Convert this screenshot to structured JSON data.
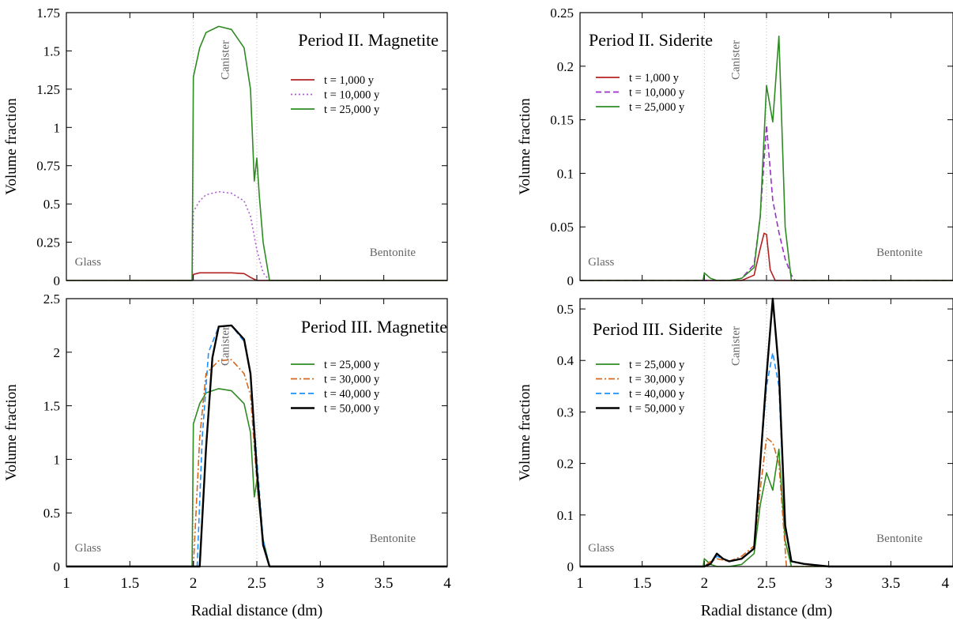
{
  "figure": {
    "xlabel": "Radial distance (dm)",
    "ylabel": "Volume fraction"
  },
  "chart_data": [
    {
      "type": "line",
      "title": "Period II. Magnetite",
      "xlabel": "",
      "ylabel": "Volume fraction",
      "xlim": [
        1,
        4
      ],
      "ylim": [
        0,
        1.75
      ],
      "xticks": [],
      "yticks": [
        "0",
        "0.25",
        "0.5",
        "0.75",
        "1",
        "1.25",
        "1.5",
        "1.75"
      ],
      "legend_position": "top-right",
      "region_labels": {
        "glass": "Glass",
        "canister": "Canister",
        "bentonite": "Bentonite"
      },
      "series": [
        {
          "name": "t = 1,000 y",
          "color": "#b22222",
          "dash": "solid",
          "x": [
            1.0,
            1.99,
            2.0,
            2.05,
            2.1,
            2.2,
            2.3,
            2.4,
            2.45,
            2.5,
            2.6,
            4.0
          ],
          "y": [
            0,
            0,
            0.04,
            0.05,
            0.05,
            0.05,
            0.05,
            0.045,
            0.02,
            0,
            0,
            0
          ]
        },
        {
          "name": "t = 10,000 y",
          "color": "#b05cd6",
          "dash": "dot",
          "x": [
            1.0,
            1.99,
            2.0,
            2.05,
            2.1,
            2.2,
            2.3,
            2.4,
            2.45,
            2.5,
            2.55,
            2.6,
            4.0
          ],
          "y": [
            0,
            0,
            0.45,
            0.52,
            0.56,
            0.58,
            0.57,
            0.52,
            0.42,
            0.2,
            0.05,
            0,
            0
          ]
        },
        {
          "name": "t = 25,000 y",
          "color": "#2e8b22",
          "dash": "solid",
          "x": [
            1.0,
            1.99,
            2.0,
            2.05,
            2.1,
            2.2,
            2.3,
            2.4,
            2.45,
            2.48,
            2.5,
            2.52,
            2.55,
            2.6,
            4.0
          ],
          "y": [
            0,
            0,
            1.33,
            1.52,
            1.62,
            1.66,
            1.64,
            1.52,
            1.25,
            0.65,
            0.8,
            0.55,
            0.25,
            0,
            0
          ]
        }
      ]
    },
    {
      "type": "line",
      "title": "Period II. Siderite",
      "xlabel": "",
      "ylabel": "Volume fraction",
      "xlim": [
        1,
        4
      ],
      "ylim": [
        0,
        0.25
      ],
      "xticks": [],
      "yticks": [
        "0",
        "0.05",
        "0.1",
        "0.15",
        "0.2",
        "0.25"
      ],
      "legend_position": "top-left",
      "region_labels": {
        "glass": "Glass",
        "canister": "Canister",
        "bentonite": "Bentonite"
      },
      "series": [
        {
          "name": "t = 1,000 y",
          "color": "#b22222",
          "dash": "solid",
          "x": [
            1.0,
            2.3,
            2.4,
            2.45,
            2.48,
            2.5,
            2.53,
            2.57,
            4.0
          ],
          "y": [
            0,
            0,
            0.005,
            0.03,
            0.044,
            0.043,
            0.01,
            0,
            0
          ]
        },
        {
          "name": "t = 10,000 y",
          "color": "#9b30c8",
          "dash": "dash",
          "x": [
            1.0,
            2.2,
            2.3,
            2.4,
            2.45,
            2.5,
            2.55,
            2.6,
            2.65,
            2.7,
            2.73,
            4.0
          ],
          "y": [
            0,
            0,
            0.002,
            0.015,
            0.06,
            0.145,
            0.075,
            0.045,
            0.02,
            0.005,
            0,
            0
          ]
        },
        {
          "name": "t = 25,000 y",
          "color": "#2e8b22",
          "dash": "solid",
          "x": [
            1.0,
            1.99,
            2.0,
            2.05,
            2.1,
            2.2,
            2.3,
            2.4,
            2.45,
            2.5,
            2.55,
            2.6,
            2.65,
            2.7,
            4.0
          ],
          "y": [
            0,
            0,
            0.007,
            0.002,
            0,
            0,
            0.002,
            0.012,
            0.06,
            0.182,
            0.148,
            0.228,
            0.05,
            0,
            0
          ]
        }
      ]
    },
    {
      "type": "line",
      "title": "Period III. Magnetite",
      "xlabel": "Radial distance (dm)",
      "ylabel": "Volume fraction",
      "xlim": [
        1,
        4
      ],
      "ylim": [
        0,
        2.5
      ],
      "xticks": [
        "1",
        "1.5",
        "2",
        "2.5",
        "3",
        "3.5",
        "4"
      ],
      "yticks": [
        "0",
        "0.5",
        "1",
        "1.5",
        "2",
        "2.5"
      ],
      "legend_position": "top-right",
      "region_labels": {
        "glass": "Glass",
        "canister": "Canister",
        "bentonite": "Bentonite"
      },
      "series": [
        {
          "name": "t = 25,000 y",
          "color": "#2e8b22",
          "dash": "solid",
          "x": [
            1.0,
            1.99,
            2.0,
            2.05,
            2.1,
            2.2,
            2.3,
            2.4,
            2.45,
            2.48,
            2.5,
            2.52,
            2.55,
            2.6,
            4.0
          ],
          "y": [
            0,
            0,
            1.33,
            1.52,
            1.62,
            1.66,
            1.64,
            1.52,
            1.25,
            0.65,
            0.8,
            0.55,
            0.25,
            0,
            0
          ]
        },
        {
          "name": "t = 30,000 y",
          "color": "#d2691e",
          "dash": "dashdot",
          "x": [
            1.0,
            2.0,
            2.05,
            2.1,
            2.2,
            2.3,
            2.4,
            2.45,
            2.5,
            2.55,
            2.6,
            4.0
          ],
          "y": [
            0,
            0,
            1.2,
            1.8,
            1.92,
            1.93,
            1.8,
            1.6,
            0.8,
            0.2,
            0,
            0
          ]
        },
        {
          "name": "t = 40,000 y",
          "color": "#1e90ff",
          "dash": "dash",
          "x": [
            1.0,
            2.03,
            2.07,
            2.12,
            2.2,
            2.3,
            2.4,
            2.45,
            2.5,
            2.55,
            2.6,
            4.0
          ],
          "y": [
            0,
            0,
            1.2,
            2.0,
            2.24,
            2.25,
            2.1,
            1.8,
            1.0,
            0.25,
            0,
            0
          ]
        },
        {
          "name": "t = 50,000 y",
          "color": "#000000",
          "dash": "solid",
          "x": [
            1.0,
            2.05,
            2.1,
            2.15,
            2.2,
            2.3,
            2.4,
            2.45,
            2.5,
            2.55,
            2.6,
            4.0
          ],
          "y": [
            0,
            0,
            1.1,
            1.95,
            2.24,
            2.25,
            2.12,
            1.8,
            0.9,
            0.2,
            0,
            0
          ]
        }
      ]
    },
    {
      "type": "line",
      "title": "Period III. Siderite",
      "xlabel": "Radial distance (dm)",
      "ylabel": "Volume fraction",
      "xlim": [
        1,
        4
      ],
      "ylim": [
        0,
        0.52
      ],
      "xticks": [
        "1",
        "1.5",
        "2",
        "2.5",
        "3",
        "3.5",
        "4"
      ],
      "yticks": [
        "0",
        "0.1",
        "0.2",
        "0.3",
        "0.4",
        "0.5"
      ],
      "legend_position": "top-left",
      "region_labels": {
        "glass": "Glass",
        "canister": "Canister",
        "bentonite": "Bentonite"
      },
      "series": [
        {
          "name": "t = 25,000 y",
          "color": "#2e8b22",
          "dash": "solid",
          "x": [
            1.0,
            1.99,
            2.0,
            2.05,
            2.1,
            2.2,
            2.3,
            2.4,
            2.45,
            2.5,
            2.55,
            2.6,
            2.65,
            2.7,
            4.0
          ],
          "y": [
            0,
            0,
            0.015,
            0.004,
            0,
            0,
            0.004,
            0.025,
            0.12,
            0.182,
            0.148,
            0.228,
            0.05,
            0,
            0
          ]
        },
        {
          "name": "t = 30,000 y",
          "color": "#d2691e",
          "dash": "dashdot",
          "x": [
            1.0,
            2.0,
            2.05,
            2.1,
            2.2,
            2.3,
            2.4,
            2.45,
            2.5,
            2.55,
            2.6,
            2.63,
            2.66,
            4.0
          ],
          "y": [
            0,
            0,
            0.01,
            0.015,
            0.01,
            0.02,
            0.04,
            0.15,
            0.25,
            0.24,
            0.2,
            0.1,
            0,
            0
          ]
        },
        {
          "name": "t = 40,000 y",
          "color": "#1e90ff",
          "dash": "dash",
          "x": [
            1.0,
            2.0,
            2.05,
            2.1,
            2.15,
            2.2,
            2.3,
            2.4,
            2.45,
            2.5,
            2.55,
            2.6,
            2.65,
            2.7,
            2.8,
            3.0,
            4.0
          ],
          "y": [
            0,
            0,
            0.005,
            0.02,
            0.015,
            0.01,
            0.015,
            0.035,
            0.2,
            0.35,
            0.415,
            0.35,
            0.08,
            0.01,
            0.005,
            0,
            0
          ]
        },
        {
          "name": "t = 50,000 y",
          "color": "#000000",
          "dash": "solid",
          "x": [
            1.0,
            2.0,
            2.05,
            2.1,
            2.15,
            2.2,
            2.3,
            2.4,
            2.45,
            2.5,
            2.55,
            2.6,
            2.65,
            2.7,
            2.8,
            3.0,
            4.0
          ],
          "y": [
            0,
            0,
            0.005,
            0.025,
            0.015,
            0.01,
            0.015,
            0.035,
            0.2,
            0.37,
            0.52,
            0.38,
            0.08,
            0.01,
            0.005,
            0,
            0
          ]
        }
      ]
    }
  ]
}
